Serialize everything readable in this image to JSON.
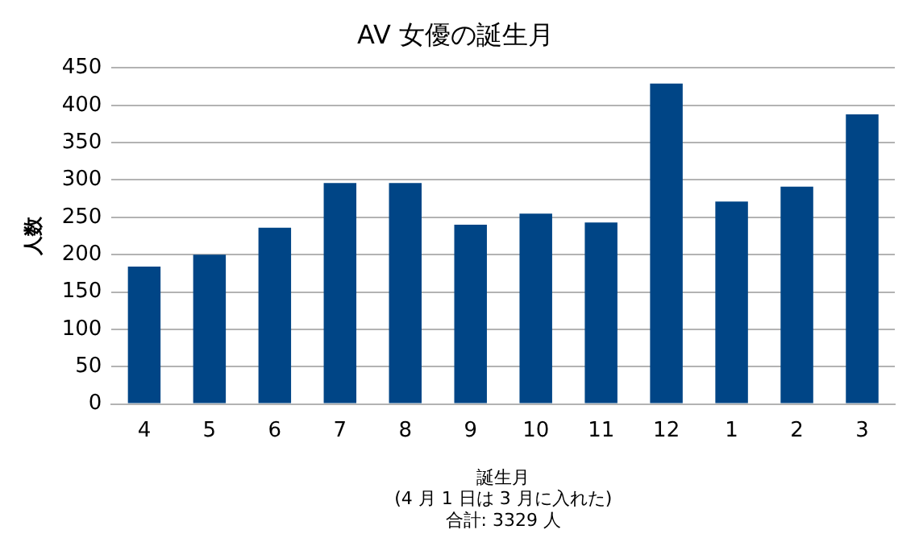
{
  "chart_data": {
    "type": "bar",
    "title": "AV 女優の誕生月",
    "xlabel": "誕生月",
    "ylabel": "人数",
    "annotations": [
      "(4 月 1 日は 3 月に入れた)",
      "合計: 3329 人"
    ],
    "categories": [
      "4",
      "5",
      "6",
      "7",
      "8",
      "9",
      "10",
      "11",
      "12",
      "1",
      "2",
      "3"
    ],
    "values": [
      184,
      200,
      236,
      296,
      296,
      240,
      255,
      243,
      429,
      271,
      291,
      388
    ],
    "color": "#004586",
    "ylim": [
      0,
      450
    ],
    "yticks": [
      0,
      50,
      100,
      150,
      200,
      250,
      300,
      350,
      400,
      450
    ],
    "grid": "y",
    "legend": false
  }
}
